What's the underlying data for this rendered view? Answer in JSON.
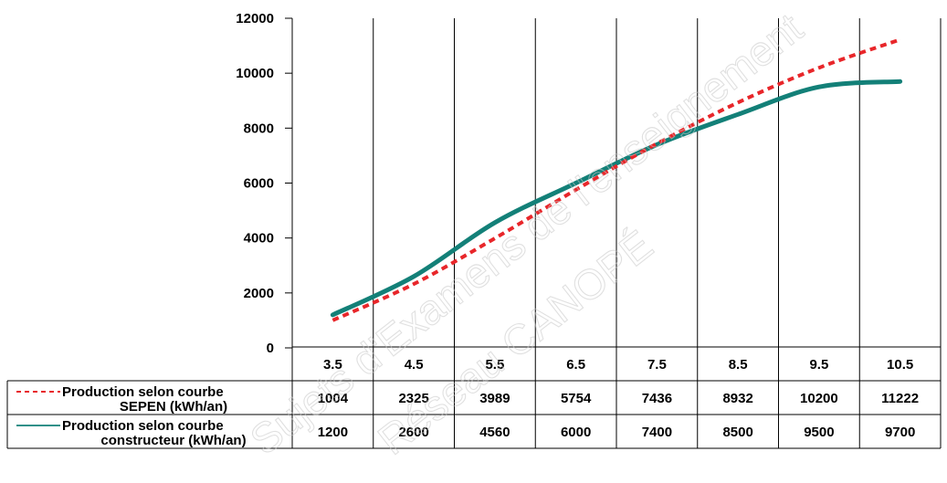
{
  "chart_data": {
    "type": "line",
    "title": "",
    "xlabel": "",
    "ylabel": "",
    "ylim": [
      0,
      12000
    ],
    "yticks": [
      "0",
      "2000",
      "4000",
      "6000",
      "8000",
      "10000",
      "12000"
    ],
    "grid": "vertical",
    "legend": "table-left",
    "x": [
      "3.5",
      "4.5",
      "5.5",
      "6.5",
      "7.5",
      "8.5",
      "9.5",
      "10.5"
    ],
    "series": [
      {
        "name_line1": "Production selon courbe",
        "name_line2": "SEPEN (kWh/an)",
        "color": "#e8262a",
        "style": "dashed",
        "values": [
          1004,
          2325,
          3989,
          5754,
          7436,
          8932,
          10200,
          11222
        ],
        "labels": [
          "1004",
          "2325",
          "3989",
          "5754",
          "7436",
          "8932",
          "10200",
          "11222"
        ]
      },
      {
        "name_line1": "Production selon courbe",
        "name_line2": "constructeur (kWh/an)",
        "color": "#138078",
        "style": "solid",
        "values": [
          1200,
          2600,
          4560,
          6000,
          7400,
          8500,
          9500,
          9700
        ],
        "labels": [
          "1200",
          "2600",
          "4560",
          "6000",
          "7400",
          "8500",
          "9500",
          "9700"
        ]
      }
    ]
  },
  "watermark": {
    "line1": "Sujets d'Examens de l'enseignement",
    "line2": "Réseau CANOPÉ"
  }
}
